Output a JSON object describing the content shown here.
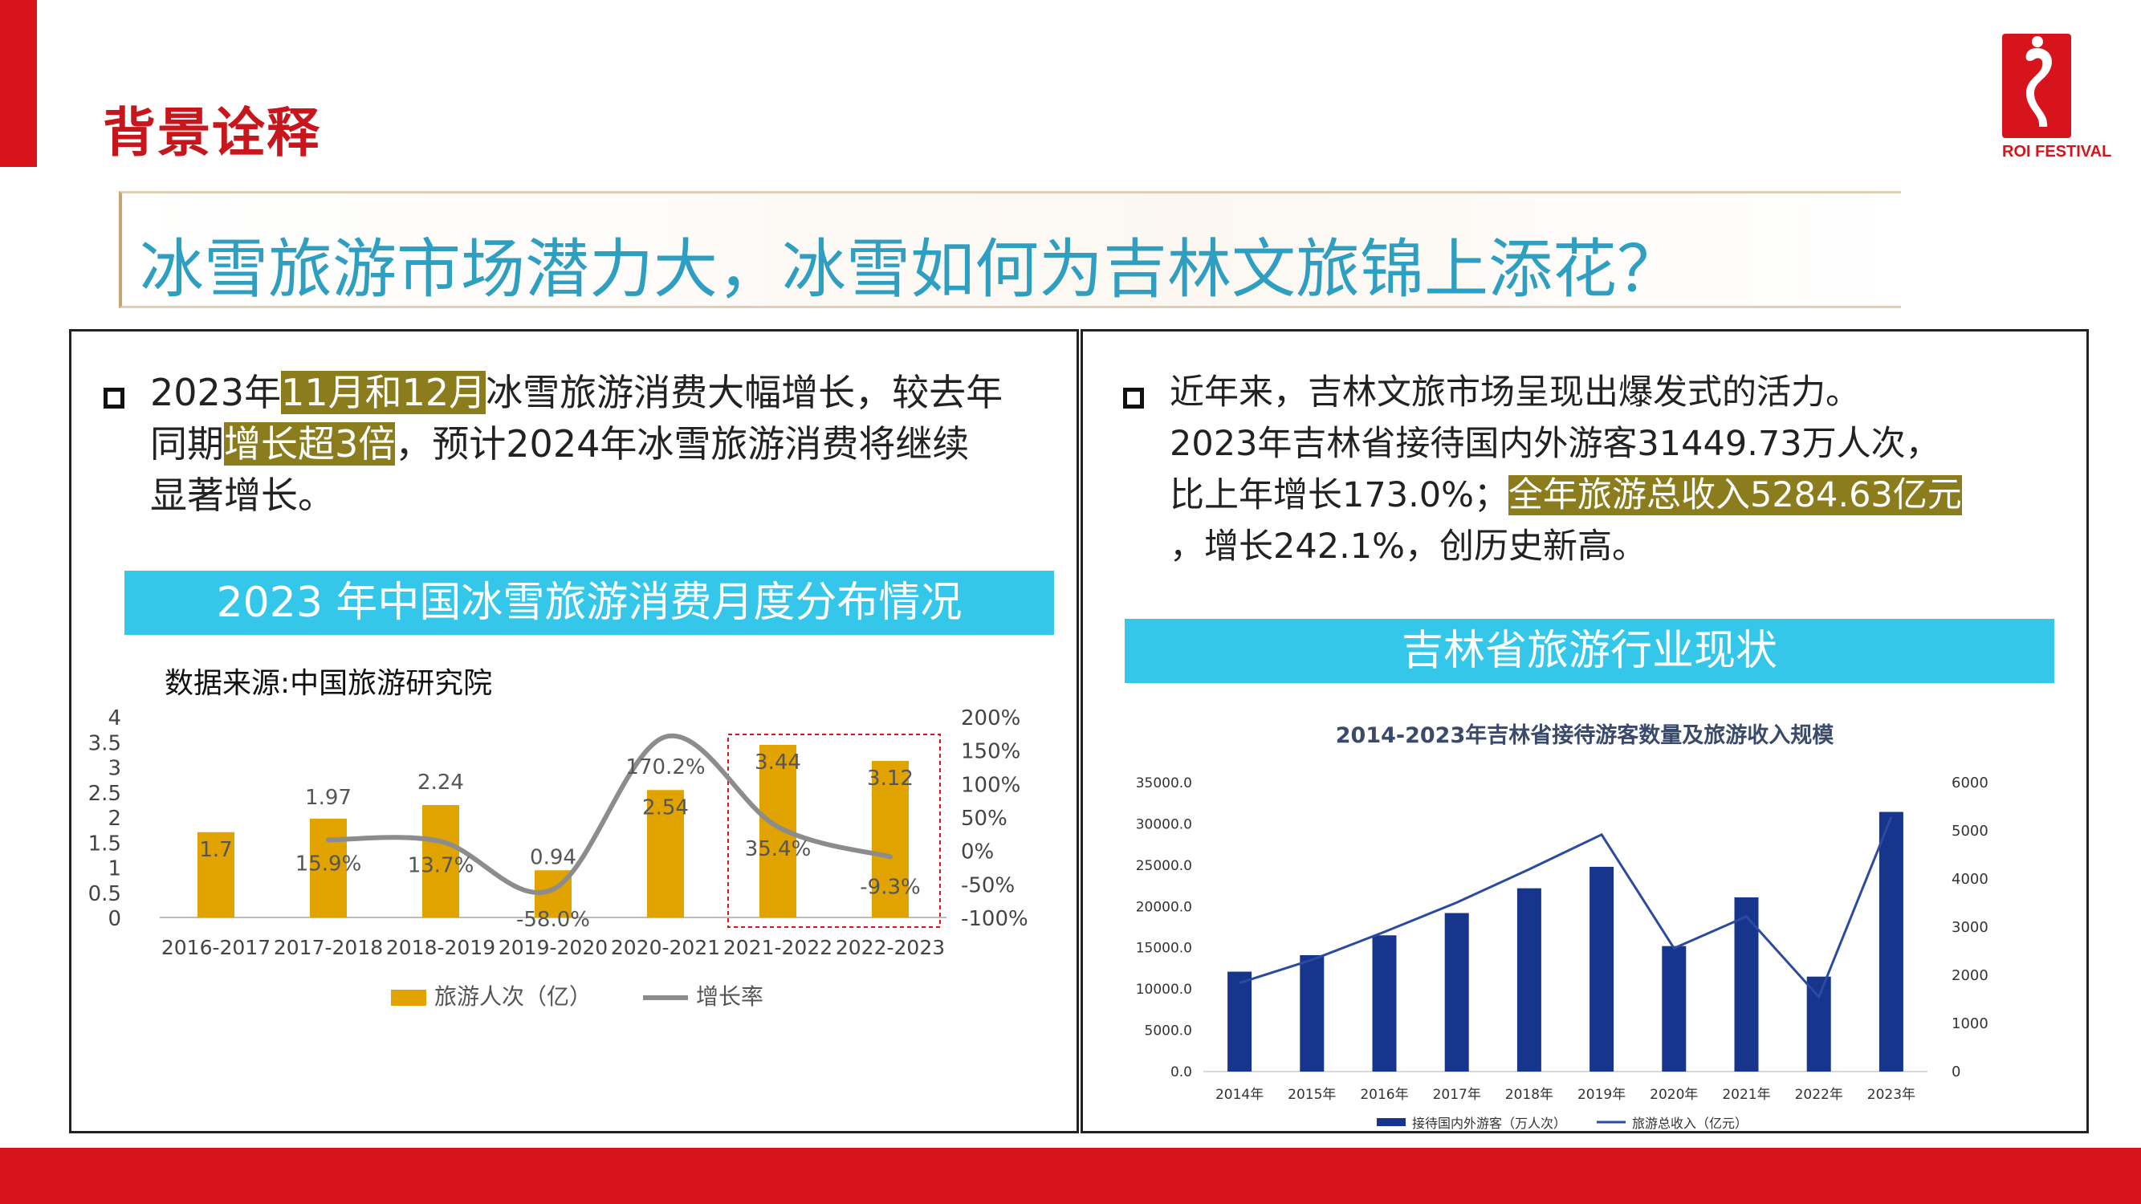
{
  "header": {
    "section_title": "背景诠释",
    "logo_text": "ROI FESTIVAL",
    "headline": "冰雪旅游市场潜力大，冰雪如何为吉林文旅锦上添花？"
  },
  "left_panel": {
    "para": {
      "line1_pre": "2023年",
      "line1_hl": "11月和12月",
      "line1_post": "冰雪旅游消费大幅增长，较去年",
      "line2_pre": "同期",
      "line2_hl": "增长超3倍",
      "line2_post": "，预计2024年冰雪旅游消费将继续",
      "line3": "显著增长。"
    },
    "banner": "2023 年中国冰雪旅游消费月度分布情况",
    "source": "数据来源:中国旅游研究院"
  },
  "right_panel": {
    "para": {
      "line1": "近年来，吉林文旅市场呈现出爆发式的活力。",
      "line2": "2023年吉林省接待国内外游客31449.73万人次，",
      "line3_pre": "比上年增长173.0%；",
      "line3_hl": "全年旅游总收入5284.63亿元",
      "line4": "，增长242.1%，创历史新高。"
    },
    "banner": "吉林省旅游行业现状"
  },
  "colors": {
    "brand_red": "#d7131b",
    "headline_blue": "#2e9fc1",
    "banner_cyan": "#34c7ea",
    "highlight_olive": "#8b7d1e",
    "bar_gold": "#e0a300",
    "line_gray": "#8c8c8c",
    "bar_navy": "#17358c",
    "line_navy": "#2b4aa0"
  },
  "chart_data": [
    {
      "type": "bar",
      "title": "",
      "categories": [
        "2016-2017",
        "2017-2018",
        "2018-2019",
        "2019-2020",
        "2020-2021",
        "2021-2022",
        "2022-2023"
      ],
      "series": [
        {
          "name": "旅游人次（亿）",
          "type": "bar",
          "axis": "left",
          "values": [
            1.7,
            1.97,
            2.24,
            0.94,
            2.54,
            3.44,
            3.12
          ],
          "labels": [
            "1.7",
            "1.97",
            "2.24",
            "0.94",
            "2.54",
            "3.44",
            "3.12"
          ]
        },
        {
          "name": "增长率",
          "type": "line",
          "axis": "right",
          "values": [
            null,
            15.9,
            13.7,
            -58.0,
            170.2,
            35.4,
            -9.3
          ],
          "labels": [
            "",
            "15.9%",
            "13.7%",
            "-58.0%",
            "170.2%",
            "35.4%",
            "-9.3%"
          ]
        }
      ],
      "y_left": {
        "min": 0,
        "max": 4,
        "ticks": [
          "0",
          "0.5",
          "1",
          "1.5",
          "2",
          "2.5",
          "3",
          "3.5",
          "4"
        ]
      },
      "y_right": {
        "min": -100,
        "max": 200,
        "ticks": [
          "-100%",
          "-50%",
          "0%",
          "50%",
          "100%",
          "150%",
          "200%"
        ]
      },
      "highlight_categories": [
        "2021-2022",
        "2022-2023"
      ],
      "legend_position": "bottom",
      "grid": false
    },
    {
      "type": "bar",
      "title": "2014-2023年吉林省接待游客数量及旅游收入规模",
      "categories": [
        "2014年",
        "2015年",
        "2016年",
        "2017年",
        "2018年",
        "2019年",
        "2020年",
        "2021年",
        "2022年",
        "2023年"
      ],
      "series": [
        {
          "name": "接待国内外游客（万人次）",
          "type": "bar",
          "axis": "left",
          "values": [
            12100,
            14100,
            16500,
            19200,
            22200,
            24800,
            15200,
            21100,
            11500,
            31450
          ]
        },
        {
          "name": "旅游总收入（亿元）",
          "type": "line",
          "axis": "right",
          "values": [
            1840,
            2320,
            2900,
            3510,
            4200,
            4920,
            2560,
            3220,
            1550,
            5285
          ]
        }
      ],
      "y_left": {
        "min": 0,
        "max": 35000,
        "ticks": [
          "0.0",
          "5000.0",
          "10000.0",
          "15000.0",
          "20000.0",
          "25000.0",
          "30000.0",
          "35000.0"
        ]
      },
      "y_right": {
        "min": 0,
        "max": 6000,
        "ticks": [
          "0",
          "1000",
          "2000",
          "3000",
          "4000",
          "5000",
          "6000"
        ]
      },
      "legend_position": "bottom",
      "grid": false
    }
  ]
}
